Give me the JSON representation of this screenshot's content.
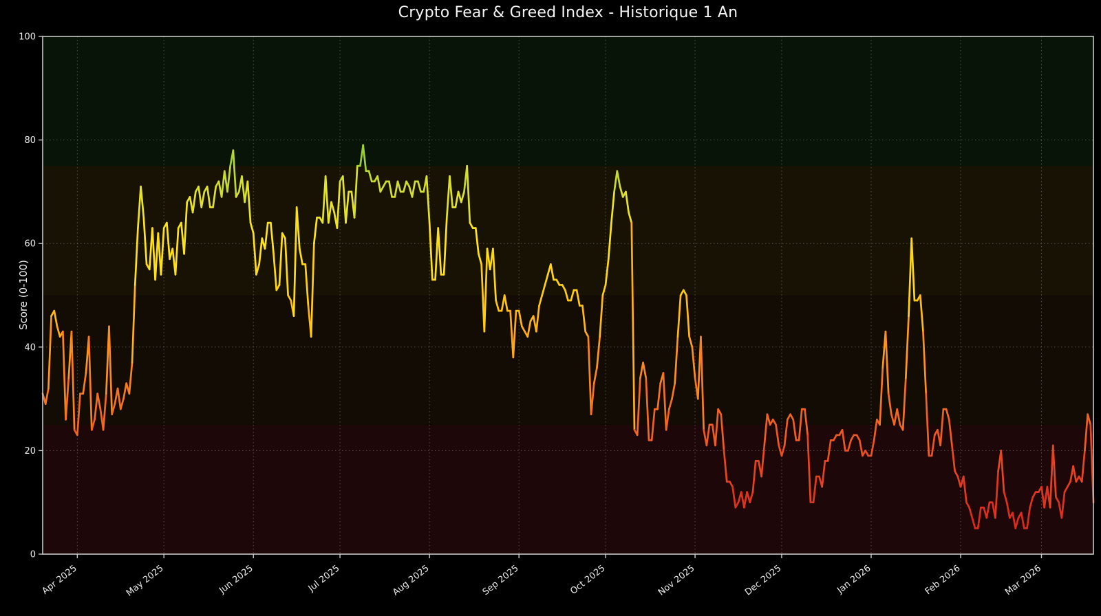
{
  "page": {
    "background": "#000000"
  },
  "chart_data": {
    "type": "line",
    "title": "Crypto Fear & Greed Index - Historique 1 An",
    "ylabel": "Score (0-100)",
    "ylim": [
      0,
      100
    ],
    "y_ticks": [
      0,
      20,
      40,
      60,
      80,
      100
    ],
    "x_tick_labels": [
      "Apr 2025",
      "May 2025",
      "Jun 2025",
      "Jul 2025",
      "Aug 2025",
      "Sep 2025",
      "Oct 2025",
      "Nov 2025",
      "Dec 2025",
      "Jan 2026",
      "Feb 2026",
      "Mar 2026"
    ],
    "x_tick_day_index": [
      12,
      42,
      73,
      103,
      134,
      165,
      195,
      226,
      256,
      287,
      318,
      346
    ],
    "n_points": 365,
    "grid": true,
    "legend": "none",
    "axis_color": "#c9c9c9",
    "text_color": "#ececec",
    "grid_color": "rgba(255,255,255,0.28)",
    "bands": [
      {
        "from": 0,
        "to": 25,
        "zone": "extreme-fear",
        "color": "#1d0708"
      },
      {
        "from": 25,
        "to": 50,
        "zone": "fear",
        "color": "#120c04"
      },
      {
        "from": 50,
        "to": 75,
        "zone": "greed",
        "color": "#171203"
      },
      {
        "from": 75,
        "to": 100,
        "zone": "extreme-greed",
        "color": "#071407"
      }
    ],
    "colormap": [
      [
        0,
        "#d01f1f"
      ],
      [
        10,
        "#dd3222"
      ],
      [
        20,
        "#ea4f24"
      ],
      [
        30,
        "#f57222"
      ],
      [
        40,
        "#ff9c1c"
      ],
      [
        50,
        "#ffcc12"
      ],
      [
        60,
        "#ffe41c"
      ],
      [
        68,
        "#e8e42a"
      ],
      [
        74,
        "#b8d834"
      ],
      [
        80,
        "#7cc43c"
      ],
      [
        100,
        "#3da93d"
      ]
    ],
    "values": [
      31,
      29,
      32,
      46,
      47,
      44,
      42,
      43,
      26,
      34,
      43,
      24,
      23,
      31,
      31,
      35,
      42,
      24,
      26,
      31,
      28,
      24,
      31,
      44,
      27,
      29,
      32,
      28,
      30,
      33,
      31,
      37,
      52,
      63,
      71,
      65,
      56,
      55,
      63,
      53,
      62,
      54,
      63,
      64,
      57,
      59,
      54,
      63,
      64,
      58,
      68,
      69,
      66,
      70,
      71,
      67,
      70,
      71,
      67,
      67,
      71,
      72,
      69,
      74,
      70,
      75,
      78,
      69,
      70,
      73,
      68,
      72,
      64,
      62,
      54,
      56,
      61,
      59,
      64,
      64,
      58,
      51,
      52,
      62,
      61,
      50,
      49,
      46,
      67,
      59,
      56,
      56,
      48,
      42,
      60,
      65,
      65,
      64,
      73,
      64,
      68,
      66,
      63,
      72,
      73,
      64,
      70,
      70,
      65,
      75,
      75,
      79,
      74,
      74,
      72,
      72,
      73,
      70,
      71,
      72,
      72,
      69,
      69,
      72,
      70,
      70,
      72,
      71,
      69,
      72,
      72,
      70,
      70,
      73,
      64,
      53,
      53,
      63,
      54,
      54,
      65,
      73,
      67,
      67,
      70,
      68,
      70,
      75,
      64,
      63,
      63,
      58,
      56,
      43,
      59,
      55,
      59,
      49,
      47,
      47,
      50,
      47,
      47,
      38,
      47,
      47,
      44,
      43,
      42,
      45,
      46,
      43,
      48,
      50,
      52,
      54,
      56,
      53,
      53,
      52,
      52,
      51,
      49,
      49,
      51,
      51,
      48,
      48,
      43,
      42,
      27,
      33,
      36,
      42,
      50,
      52,
      57,
      64,
      70,
      74,
      71,
      69,
      70,
      66,
      64,
      24,
      23,
      34,
      37,
      34,
      22,
      22,
      28,
      28,
      33,
      35,
      24,
      28,
      30,
      33,
      42,
      50,
      51,
      50,
      42,
      40,
      34,
      30,
      42,
      24,
      21,
      25,
      25,
      21,
      28,
      27,
      20,
      14,
      14,
      13,
      9,
      10,
      12,
      9,
      12,
      10,
      12,
      18,
      18,
      15,
      21,
      27,
      25,
      26,
      25,
      21,
      19,
      21,
      26,
      27,
      26,
      22,
      22,
      28,
      28,
      23,
      10,
      10,
      15,
      15,
      13,
      18,
      18,
      22,
      22,
      23,
      23,
      24,
      20,
      20,
      22,
      23,
      23,
      22,
      19,
      20,
      19,
      19,
      22,
      26,
      25,
      36,
      43,
      31,
      27,
      25,
      28,
      25,
      24,
      34,
      46,
      61,
      49,
      49,
      50,
      43,
      31,
      19,
      19,
      23,
      24,
      21,
      28,
      28,
      26,
      21,
      16,
      15,
      13,
      15,
      10,
      9,
      7,
      5,
      5,
      9,
      9,
      7,
      10,
      10,
      7,
      16,
      20,
      12,
      10,
      7,
      8,
      5,
      7,
      8,
      5,
      5,
      9,
      11,
      12,
      12,
      13,
      9,
      13,
      9,
      21,
      11,
      10,
      7,
      12,
      13,
      14,
      17,
      14,
      15,
      14,
      20,
      27,
      25,
      10
    ]
  }
}
